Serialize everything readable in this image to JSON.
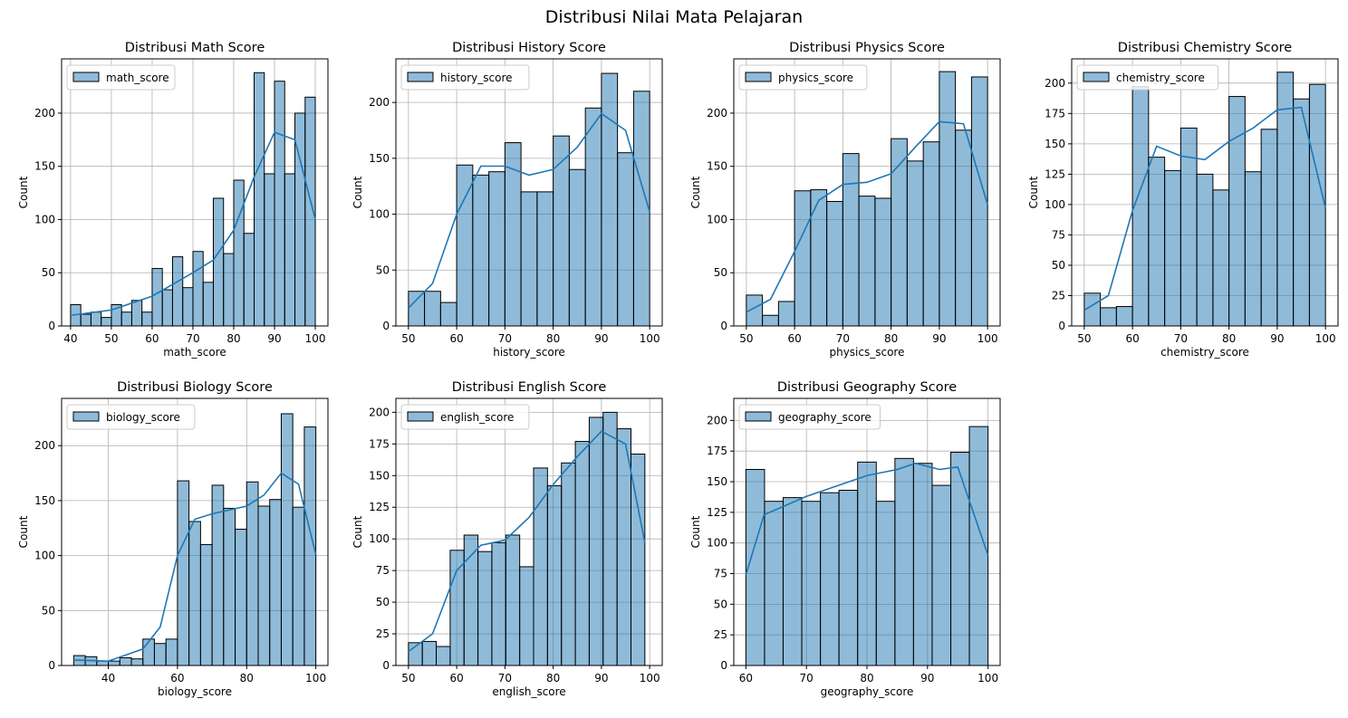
{
  "title": "Distribusi Nilai Mata Pelajaran",
  "chart_data": [
    {
      "type": "histogram",
      "title": "Distribusi Math Score",
      "xlabel": "math_score",
      "ylabel": "Count",
      "legend": "math_score",
      "color": "#1f77b4",
      "grid": true,
      "legend_corner": "upper-left",
      "bins": [
        40,
        42.5,
        45,
        47.5,
        50,
        52.5,
        55,
        57.5,
        60,
        62.5,
        65,
        67.5,
        70,
        72.5,
        75,
        77.5,
        80,
        82.5,
        85,
        87.5,
        90,
        92.5,
        95,
        97.5,
        100
      ],
      "counts": [
        20,
        11,
        13,
        8,
        20,
        13,
        24,
        13,
        54,
        34,
        65,
        36,
        70,
        41,
        120,
        68,
        137,
        87,
        238,
        143,
        230,
        143,
        200,
        215
      ],
      "kde": {
        "x": [
          40,
          50,
          60,
          70,
          75,
          80,
          85,
          90,
          95,
          100
        ],
        "values": [
          10,
          15,
          28,
          50,
          62,
          90,
          140,
          182,
          175,
          100
        ]
      },
      "xlim": [
        37.8,
        103.1
      ],
      "ylim": [
        0,
        251
      ],
      "xticks": [
        40,
        50,
        60,
        70,
        80,
        90,
        100
      ],
      "yticks": [
        0,
        50,
        100,
        150,
        200
      ]
    },
    {
      "type": "histogram",
      "title": "Distribusi History Score",
      "xlabel": "history_score",
      "ylabel": "Count",
      "legend": "history_score",
      "color": "#1f77b4",
      "grid": true,
      "legend_corner": "upper-left",
      "bins": [
        50,
        53.33,
        56.67,
        60,
        63.33,
        66.67,
        70,
        73.33,
        76.67,
        80,
        83.33,
        86.67,
        90,
        93.33,
        96.67,
        100
      ],
      "counts": [
        31,
        31,
        21,
        144,
        135,
        138,
        164,
        120,
        120,
        170,
        140,
        195,
        226,
        155,
        210
      ],
      "kde": {
        "x": [
          50,
          55,
          60,
          65,
          70,
          75,
          80,
          85,
          90,
          95,
          100
        ],
        "values": [
          16,
          38,
          100,
          143,
          143,
          135,
          140,
          160,
          190,
          175,
          102
        ]
      },
      "xlim": [
        47.4,
        102.6
      ],
      "ylim": [
        0,
        239
      ],
      "xticks": [
        50,
        60,
        70,
        80,
        90,
        100
      ],
      "yticks": [
        0,
        50,
        100,
        150,
        200
      ]
    },
    {
      "type": "histogram",
      "title": "Distribusi Physics Score",
      "xlabel": "physics_score",
      "ylabel": "Count",
      "legend": "physics_score",
      "color": "#1f77b4",
      "grid": true,
      "legend_corner": "upper-left",
      "bins": [
        50,
        53.33,
        56.67,
        60,
        63.33,
        66.67,
        70,
        73.33,
        76.67,
        80,
        83.33,
        86.67,
        90,
        93.33,
        96.67,
        100
      ],
      "counts": [
        29,
        10,
        23,
        127,
        128,
        117,
        162,
        122,
        120,
        176,
        155,
        173,
        239,
        184,
        234
      ],
      "kde": {
        "x": [
          50,
          55,
          60,
          65,
          70,
          75,
          80,
          85,
          90,
          95,
          100
        ],
        "values": [
          13,
          25,
          70,
          118,
          133,
          135,
          143,
          168,
          192,
          190,
          114
        ]
      },
      "xlim": [
        47.4,
        102.6
      ],
      "ylim": [
        0,
        251
      ],
      "xticks": [
        50,
        60,
        70,
        80,
        90,
        100
      ],
      "yticks": [
        0,
        50,
        100,
        150,
        200
      ]
    },
    {
      "type": "histogram",
      "title": "Distribusi Chemistry Score",
      "xlabel": "chemistry_score",
      "ylabel": "Count",
      "legend": "chemistry_score",
      "color": "#1f77b4",
      "grid": true,
      "legend_corner": "upper-left",
      "bins": [
        50,
        53.33,
        56.67,
        60,
        63.33,
        66.67,
        70,
        73.33,
        76.67,
        80,
        83.33,
        86.67,
        90,
        93.33,
        96.67,
        100
      ],
      "counts": [
        27,
        15,
        16,
        197,
        139,
        128,
        163,
        125,
        112,
        189,
        127,
        162,
        209,
        187,
        199
      ],
      "kde": {
        "x": [
          50,
          55,
          60,
          65,
          70,
          75,
          80,
          85,
          90,
          95,
          100
        ],
        "values": [
          13,
          25,
          95,
          148,
          140,
          137,
          152,
          163,
          178,
          180,
          97
        ]
      },
      "xlim": [
        47.4,
        102.6
      ],
      "ylim": [
        0,
        220
      ],
      "xticks": [
        50,
        60,
        70,
        80,
        90,
        100
      ],
      "yticks": [
        0,
        25,
        50,
        75,
        100,
        125,
        150,
        175,
        200
      ]
    },
    {
      "type": "histogram",
      "title": "Distribusi Biology Score",
      "xlabel": "biology_score",
      "ylabel": "Count",
      "legend": "biology_score",
      "color": "#1f77b4",
      "grid": true,
      "legend_corner": "upper-left",
      "bins": [
        30,
        33.33,
        36.67,
        40,
        43.33,
        46.67,
        50,
        53.33,
        56.67,
        60,
        63.33,
        66.67,
        70,
        73.33,
        76.67,
        80,
        83.33,
        86.67,
        90,
        93.33,
        96.67,
        100
      ],
      "counts": [
        9,
        8,
        4,
        4,
        7,
        6,
        24,
        20,
        24,
        168,
        131,
        110,
        164,
        143,
        124,
        167,
        145,
        151,
        229,
        144,
        217
      ],
      "kde": {
        "x": [
          30,
          40,
          50,
          55,
          60,
          65,
          70,
          80,
          85,
          90,
          95,
          100
        ],
        "values": [
          5,
          4,
          15,
          35,
          100,
          133,
          138,
          145,
          155,
          175,
          165,
          101
        ]
      },
      "xlim": [
        26.5,
        103.5
      ],
      "ylim": [
        0,
        243
      ],
      "xticks": [
        40,
        60,
        80,
        100
      ],
      "yticks": [
        0,
        50,
        100,
        150,
        200
      ]
    },
    {
      "type": "histogram",
      "title": "Distribusi English Score",
      "xlabel": "english_score",
      "ylabel": "Count",
      "legend": "english_score",
      "color": "#1f77b4",
      "grid": true,
      "legend_corner": "upper-left",
      "bins": [
        50,
        52.88,
        55.76,
        58.65,
        61.53,
        64.41,
        67.29,
        70.18,
        73.06,
        75.94,
        78.82,
        81.71,
        84.59,
        87.47,
        90.35,
        93.24,
        96.12,
        99
      ],
      "counts": [
        18,
        19,
        15,
        91,
        103,
        90,
        97,
        103,
        78,
        156,
        142,
        160,
        177,
        196,
        200,
        187,
        167
      ],
      "kde": {
        "x": [
          50,
          55,
          60,
          65,
          70,
          75,
          80,
          85,
          90,
          95,
          99
        ],
        "values": [
          11,
          25,
          75,
          95,
          99,
          117,
          143,
          165,
          185,
          175,
          97
        ]
      },
      "xlim": [
        47.4,
        102.6
      ],
      "ylim": [
        0,
        211
      ],
      "xticks": [
        50,
        60,
        70,
        80,
        90,
        100
      ],
      "yticks": [
        0,
        25,
        50,
        75,
        100,
        125,
        150,
        175,
        200
      ]
    },
    {
      "type": "histogram",
      "title": "Distribusi Geography Score",
      "xlabel": "geography_score",
      "ylabel": "Count",
      "legend": "geography_score",
      "color": "#1f77b4",
      "grid": true,
      "legend_corner": "upper-left",
      "bins": [
        60,
        63.08,
        66.15,
        69.23,
        72.31,
        75.38,
        78.46,
        81.54,
        84.62,
        87.69,
        90.77,
        93.85,
        96.92,
        100
      ],
      "counts": [
        160,
        134,
        137,
        134,
        141,
        143,
        166,
        134,
        169,
        165,
        147,
        174,
        195
      ],
      "kde": {
        "x": [
          60,
          63,
          70,
          80,
          85,
          88,
          92,
          95,
          100
        ],
        "values": [
          74,
          123,
          138,
          155,
          160,
          165,
          160,
          162,
          90
        ]
      },
      "xlim": [
        58,
        102
      ],
      "ylim": [
        0,
        218
      ],
      "xticks": [
        60,
        70,
        80,
        90,
        100
      ],
      "yticks": [
        0,
        25,
        50,
        75,
        100,
        125,
        150,
        175,
        200
      ]
    }
  ]
}
